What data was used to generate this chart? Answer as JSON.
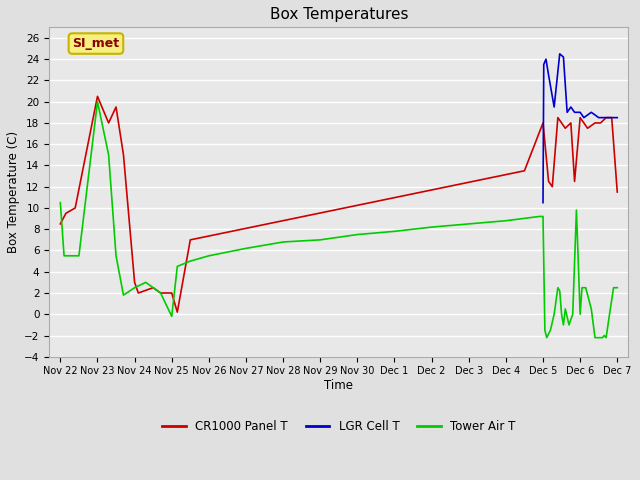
{
  "title": "Box Temperatures",
  "xlabel": "Time",
  "ylabel": "Box Temperature (C)",
  "ylim": [
    -4,
    27
  ],
  "yticks": [
    -4,
    -2,
    0,
    2,
    4,
    6,
    8,
    10,
    12,
    14,
    16,
    18,
    20,
    22,
    24,
    26
  ],
  "bg_color": "#e0e0e0",
  "plot_bg": "#e8e8e8",
  "grid_color": "#ffffff",
  "annotation_text": "SI_met",
  "annotation_color": "#8B0000",
  "annotation_bg": "#f5f080",
  "annotation_border": "#c8b400",
  "cr1000_color": "#cc0000",
  "lgr_color": "#0000cc",
  "tower_color": "#00cc00",
  "cr1000_label": "CR1000 Panel T",
  "lgr_label": "LGR Cell T",
  "tower_label": "Tower Air T",
  "x_labels": [
    "Nov 22",
    "Nov 23",
    "Nov 24",
    "Nov 25",
    "Nov 26",
    "Nov 27",
    "Nov 28",
    "Nov 29",
    "Nov 30",
    "Dec 1",
    "Dec 2",
    "Dec 3",
    "Dec 4",
    "Dec 5",
    "Dec 6",
    "Dec 7"
  ],
  "cr1000_x": [
    0,
    0.15,
    0.4,
    1.0,
    1.3,
    1.5,
    1.7,
    2.0,
    2.1,
    2.5,
    2.7,
    2.85,
    3.0,
    3.15,
    3.5,
    12.5,
    13.0,
    13.15,
    13.25,
    13.4,
    13.6,
    13.75,
    13.85,
    14.0,
    14.2,
    14.4,
    14.55,
    14.7,
    14.85,
    15.0
  ],
  "cr1000_y": [
    8.5,
    9.5,
    10.0,
    20.5,
    18.0,
    19.5,
    15.0,
    3.0,
    2.0,
    2.5,
    2.0,
    2.0,
    2.0,
    0.2,
    7.0,
    13.5,
    18.0,
    12.5,
    12.0,
    18.5,
    17.5,
    18.0,
    12.5,
    18.5,
    17.5,
    18.0,
    18.0,
    18.5,
    18.5,
    11.5
  ],
  "lgr_x": [
    13.0,
    13.02,
    13.08,
    13.15,
    13.3,
    13.45,
    13.55,
    13.65,
    13.75,
    13.85,
    14.0,
    14.1,
    14.3,
    14.5,
    14.6,
    14.7,
    14.8,
    15.0
  ],
  "lgr_y": [
    10.5,
    23.5,
    24.0,
    22.5,
    19.5,
    24.5,
    24.2,
    19.0,
    19.5,
    19.0,
    19.0,
    18.5,
    19.0,
    18.5,
    18.5,
    18.5,
    18.5,
    18.5
  ],
  "tower_x": [
    0,
    0.1,
    0.5,
    1.0,
    1.3,
    1.5,
    1.7,
    2.0,
    2.3,
    2.7,
    3.0,
    3.15,
    3.5,
    4.0,
    5.0,
    6.0,
    7.0,
    8.0,
    9.0,
    10.0,
    11.0,
    12.0,
    12.9,
    13.0,
    13.05,
    13.1,
    13.2,
    13.3,
    13.4,
    13.45,
    13.5,
    13.55,
    13.6,
    13.7,
    13.8,
    13.9,
    14.0,
    14.05,
    14.15,
    14.3,
    14.4,
    14.5,
    14.6,
    14.65,
    14.7,
    14.8,
    14.9,
    15.0
  ],
  "tower_y": [
    10.5,
    5.5,
    5.5,
    20.0,
    15.0,
    5.5,
    1.8,
    2.5,
    3.0,
    2.0,
    -0.2,
    4.5,
    5.0,
    5.5,
    6.2,
    6.8,
    7.0,
    7.5,
    7.8,
    8.2,
    8.5,
    8.8,
    9.2,
    9.2,
    -1.5,
    -2.2,
    -1.5,
    0.0,
    2.5,
    2.2,
    0.0,
    -1.0,
    0.5,
    -1.0,
    0.0,
    9.8,
    0.0,
    2.5,
    2.5,
    0.5,
    -2.2,
    -2.2,
    -2.2,
    -2.0,
    -2.2,
    0.2,
    2.5,
    2.5
  ]
}
